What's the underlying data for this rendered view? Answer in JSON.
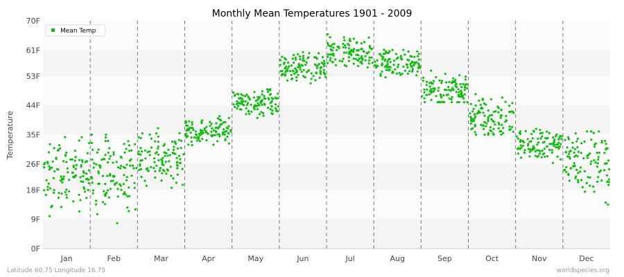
{
  "chart_data": {
    "type": "scatter",
    "title": "Monthly Mean Temperatures 1901 - 2009",
    "ylabel": "Temperature",
    "xlabel": "",
    "categories": [
      "Jan",
      "Feb",
      "Mar",
      "Apr",
      "May",
      "Jun",
      "Jul",
      "Aug",
      "Sep",
      "Oct",
      "Nov",
      "Dec"
    ],
    "yticks": [
      0,
      9,
      18,
      26,
      35,
      44,
      53,
      61,
      70
    ],
    "ytick_labels": [
      "0F",
      "9F",
      "18F",
      "26F",
      "35F",
      "44F",
      "53F",
      "61F",
      "70F"
    ],
    "ylim": [
      0,
      70
    ],
    "grid": "alternating horizontal bands, dashed month separators",
    "legend_position": "top-left",
    "series": [
      {
        "name": "Mean Temp",
        "color": "#11bb11",
        "month_summary": [
          {
            "month": "Jan",
            "min": 6,
            "mean": 23,
            "max": 35
          },
          {
            "month": "Feb",
            "min": 6,
            "mean": 23,
            "max": 35
          },
          {
            "month": "Mar",
            "min": 17,
            "mean": 28,
            "max": 37
          },
          {
            "month": "Apr",
            "min": 31,
            "mean": 36,
            "max": 42
          },
          {
            "month": "May",
            "min": 40,
            "mean": 45,
            "max": 51
          },
          {
            "month": "Jun",
            "min": 49,
            "mean": 55,
            "max": 62
          },
          {
            "month": "Jul",
            "min": 54,
            "mean": 60,
            "max": 67
          },
          {
            "month": "Aug",
            "min": 52,
            "mean": 57,
            "max": 63
          },
          {
            "month": "Sep",
            "min": 45,
            "mean": 49,
            "max": 56
          },
          {
            "month": "Oct",
            "min": 35,
            "mean": 40,
            "max": 49
          },
          {
            "month": "Nov",
            "min": 24,
            "mean": 32,
            "max": 38
          },
          {
            "month": "Dec",
            "min": 11,
            "mean": 27,
            "max": 36
          }
        ]
      }
    ]
  },
  "footer": {
    "location": "Latitude 60.75 Longitude 16.75",
    "source": "worldspecies.org"
  }
}
